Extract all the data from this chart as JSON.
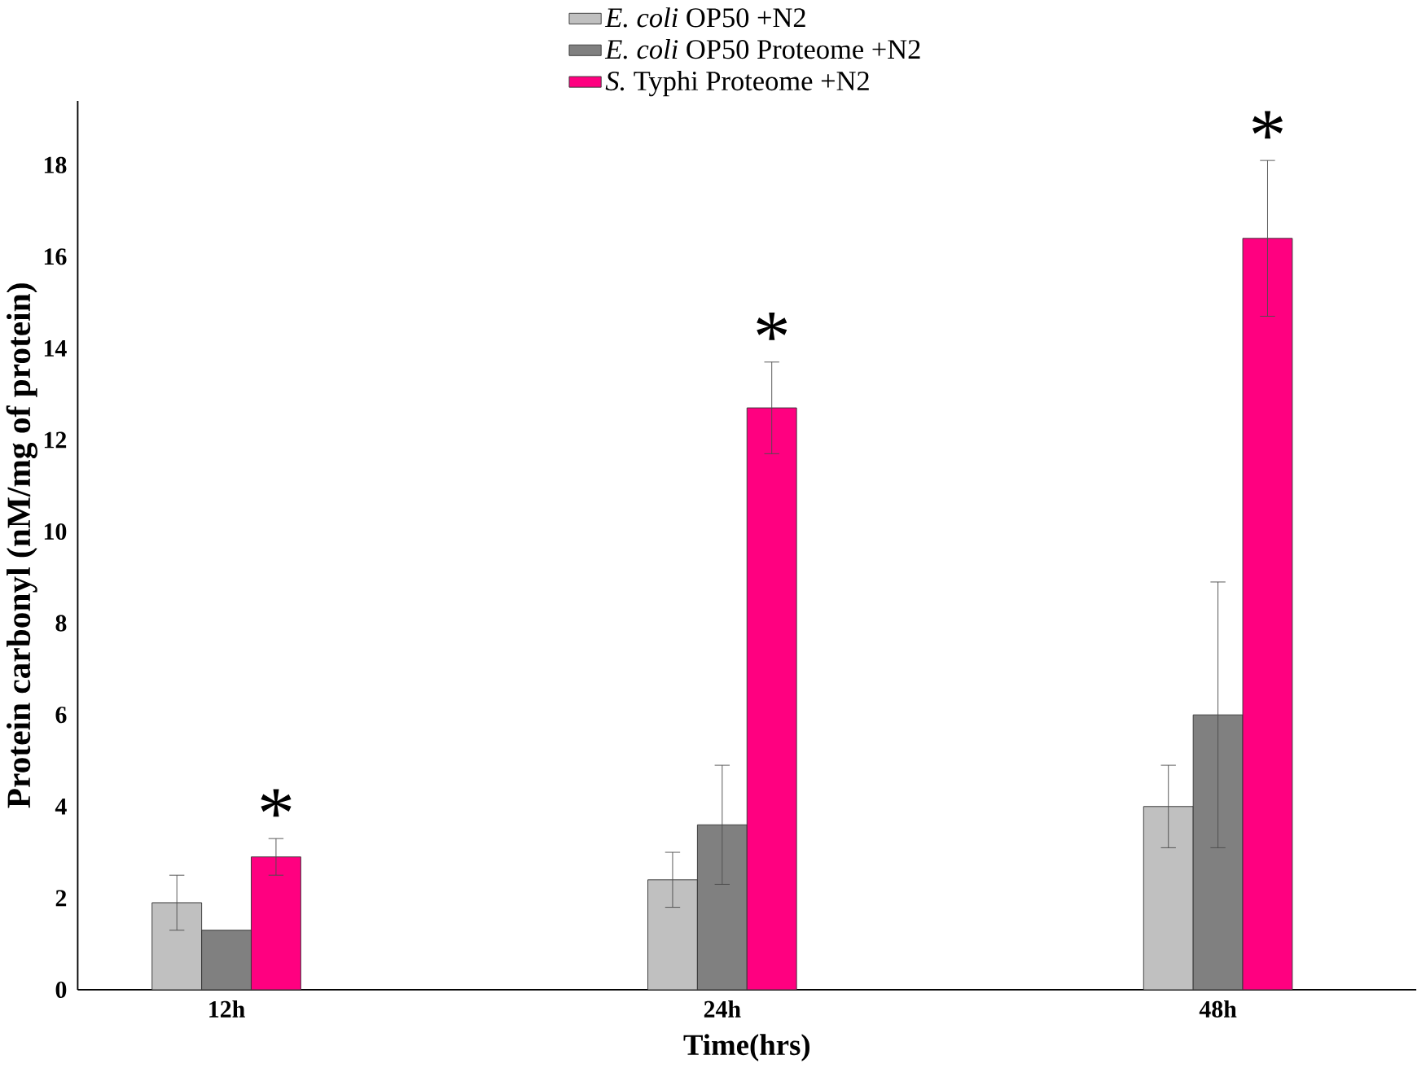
{
  "chart_data": {
    "type": "bar",
    "xlabel": "Time(hrs)",
    "ylabel": "Protein carbonyl (nM/mg of protein)",
    "categories": [
      "12h",
      "24h",
      "48h"
    ],
    "series": [
      {
        "name": "*E. coli* OP50 +N2",
        "color": "#c0c0c0",
        "values": [
          1.9,
          2.4,
          4.0
        ],
        "errors": [
          0.6,
          0.6,
          0.9
        ]
      },
      {
        "name": "*E. coli* OP50 Proteome +N2",
        "color": "#808080",
        "values": [
          1.3,
          3.6,
          6.0
        ],
        "errors": [
          null,
          1.3,
          2.9
        ]
      },
      {
        "name": "*S.* Typhi Proteome +N2",
        "color": "#ff0080",
        "values": [
          2.9,
          12.7,
          16.4
        ],
        "errors": [
          0.4,
          1.0,
          1.7
        ]
      }
    ],
    "ylim": [
      0,
      19.4
    ],
    "yticks": [
      0,
      2,
      4,
      6,
      8,
      10,
      12,
      14,
      16,
      18
    ],
    "legend": "top",
    "grid": false,
    "annotations": [
      "*",
      "*",
      "*"
    ]
  }
}
